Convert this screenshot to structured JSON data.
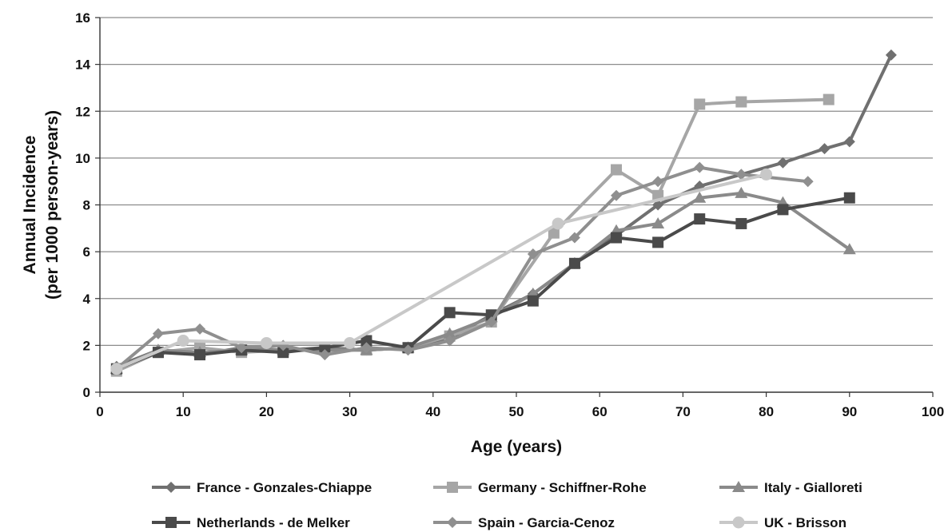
{
  "chart_data": {
    "type": "line",
    "title": "",
    "xlabel": "Age (years)",
    "ylabel_line1": "Annual Incidence",
    "ylabel_line2": "(per 1000 person-years)",
    "xlim": [
      0,
      100
    ],
    "ylim": [
      0,
      16
    ],
    "x_ticks": [
      "0",
      "10",
      "20",
      "30",
      "40",
      "50",
      "60",
      "70",
      "80",
      "90",
      "100"
    ],
    "y_ticks": [
      "0",
      "2",
      "4",
      "6",
      "8",
      "10",
      "12",
      "14",
      "16"
    ],
    "grid": "horizontal",
    "legend_position": "bottom",
    "series": [
      {
        "name": "France - Gonzales-Chiappe",
        "color": "#707070",
        "marker": "diamond",
        "x": [
          2,
          7,
          12,
          17,
          22,
          27,
          32,
          37,
          42,
          47,
          52,
          57,
          62,
          67,
          72,
          77,
          82,
          87,
          90,
          95
        ],
        "y": [
          1.1,
          1.8,
          1.6,
          1.9,
          1.8,
          1.9,
          1.8,
          1.9,
          2.3,
          3.3,
          4.2,
          5.5,
          6.7,
          8.0,
          8.8,
          9.3,
          9.8,
          10.4,
          10.7,
          14.4
        ]
      },
      {
        "name": "Germany - Schiffner-Rohe",
        "color": "#a6a6a6",
        "marker": "square",
        "x": [
          2,
          7,
          12,
          17,
          22,
          27,
          32,
          37,
          42,
          47,
          54.5,
          62,
          67,
          72,
          77,
          87.5
        ],
        "y": [
          0.9,
          1.7,
          1.9,
          1.7,
          1.8,
          1.8,
          1.8,
          1.9,
          2.4,
          3.0,
          6.8,
          9.5,
          8.4,
          12.3,
          12.4,
          12.5
        ]
      },
      {
        "name": "Italy - Gialloreti",
        "color": "#8a8a8a",
        "marker": "triangle",
        "x": [
          2,
          7,
          12,
          17,
          22,
          27,
          32,
          37,
          42,
          47,
          52,
          57,
          62,
          67,
          72,
          77,
          82,
          90
        ],
        "y": [
          1.0,
          1.8,
          1.7,
          1.8,
          1.8,
          1.8,
          1.8,
          1.9,
          2.5,
          3.2,
          4.2,
          5.5,
          6.9,
          7.2,
          8.3,
          8.5,
          8.1,
          6.1
        ]
      },
      {
        "name": "Netherlands - de Melker",
        "color": "#4a4a4a",
        "marker": "square",
        "x": [
          2,
          7,
          12,
          17,
          22,
          27,
          32,
          37,
          42,
          47,
          52,
          57,
          62,
          67,
          72,
          77,
          82,
          90
        ],
        "y": [
          1.0,
          1.7,
          1.6,
          1.8,
          1.7,
          1.9,
          2.2,
          1.9,
          3.4,
          3.3,
          3.9,
          5.5,
          6.6,
          6.4,
          7.4,
          7.2,
          7.8,
          8.3
        ]
      },
      {
        "name": "Spain - Garcia-Cenoz",
        "color": "#8f8f8f",
        "marker": "diamond",
        "x": [
          2,
          7,
          12,
          17,
          22,
          27,
          32,
          37,
          42,
          47,
          52,
          57,
          62,
          67,
          72,
          77,
          85
        ],
        "y": [
          1.0,
          2.5,
          2.7,
          1.9,
          2.0,
          1.6,
          1.9,
          1.8,
          2.2,
          3.0,
          5.9,
          6.6,
          8.4,
          9.0,
          9.6,
          9.3,
          9.0
        ]
      },
      {
        "name": "UK - Brisson",
        "color": "#c8c8c8",
        "marker": "circle",
        "x": [
          2,
          10,
          20,
          30,
          55,
          80
        ],
        "y": [
          1.0,
          2.2,
          2.1,
          2.1,
          7.2,
          9.3
        ]
      }
    ]
  }
}
